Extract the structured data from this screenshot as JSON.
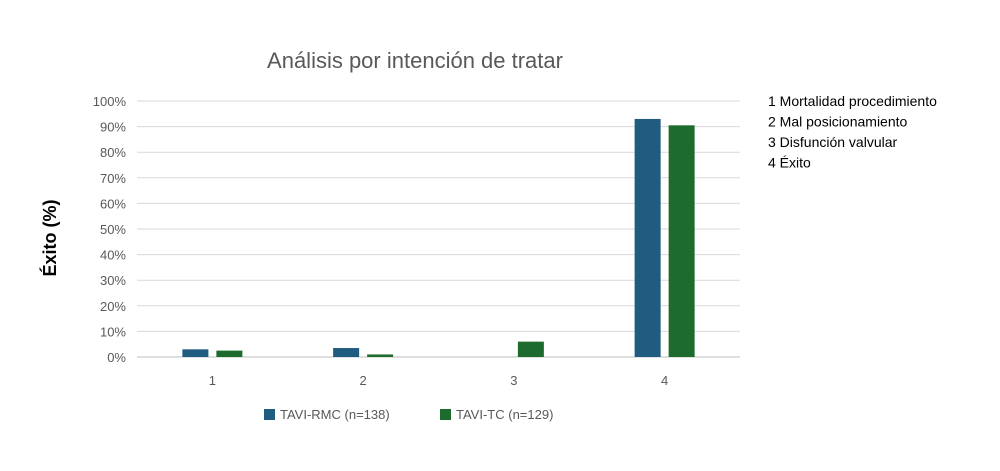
{
  "chart_data": {
    "type": "bar",
    "title": "Análisis por intención de tratar",
    "xlabel": "",
    "ylabel": "Éxito (%)",
    "ylim": [
      0,
      100
    ],
    "y_ticks": [
      "0%",
      "10%",
      "20%",
      "30%",
      "40%",
      "50%",
      "60%",
      "70%",
      "80%",
      "90%",
      "100%"
    ],
    "categories": [
      "1",
      "2",
      "3",
      "4"
    ],
    "series": [
      {
        "name": "TAVI-RMC (n=138)",
        "color": "#1f5c7f",
        "values": [
          3,
          3.5,
          0,
          93
        ]
      },
      {
        "name": "TAVI-TC (n=129)",
        "color": "#1e6b2e",
        "values": [
          2.5,
          1,
          6,
          90.5
        ]
      }
    ],
    "legend_position": "bottom",
    "grid": true,
    "notes": [
      "1 Mortalidad procedimiento",
      "2 Mal posicionamiento",
      "3 Disfunción valvular",
      "4 Éxito"
    ]
  }
}
